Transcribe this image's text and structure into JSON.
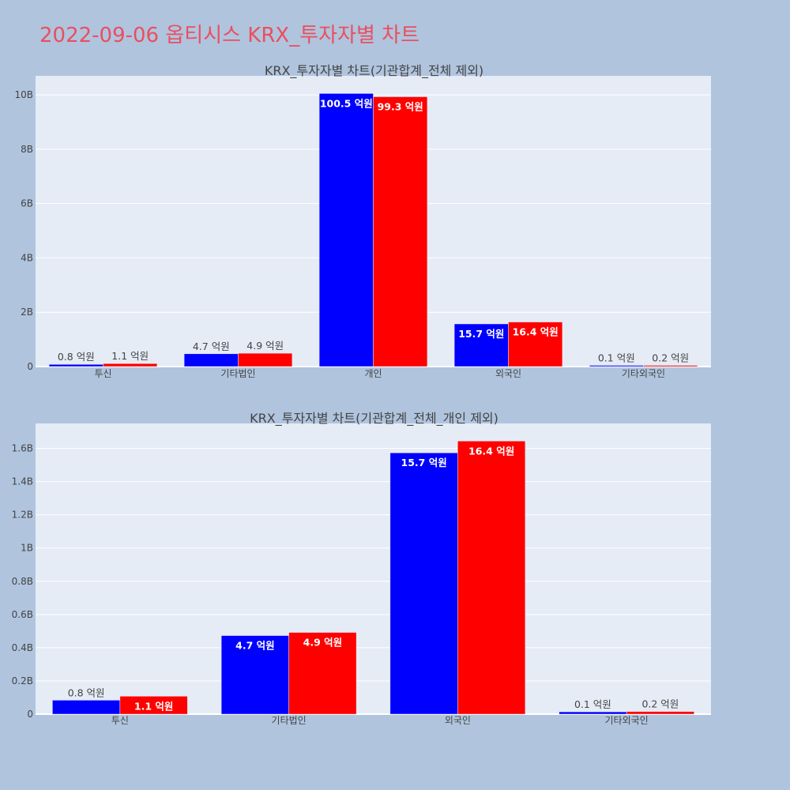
{
  "page": {
    "title": "2022-09-06 옵티시스 KRX_투자자별 차트",
    "background": "#b0c4de",
    "title_color": "#ea4f5f"
  },
  "colors": {
    "series_1": "#0000ff",
    "series_2": "#ff0000",
    "plot_bg": "#e5ecf6",
    "grid": "#ffffff",
    "text": "#444444"
  },
  "chart_data": [
    {
      "type": "bar",
      "title": "KRX_투자자별 차트(기관합계_전체 제외)",
      "categories": [
        "투신",
        "기타법인",
        "개인",
        "외국인",
        "기타외국인"
      ],
      "series": [
        {
          "color": "#0000ff",
          "values": [
            0.08,
            0.47,
            10.05,
            1.57,
            0.01
          ],
          "labels": [
            "0.8 억원",
            "4.7 억원",
            "100.5 억원",
            "15.7 억원",
            "0.1 억원"
          ]
        },
        {
          "color": "#ff0000",
          "values": [
            0.11,
            0.49,
            9.93,
            1.64,
            0.02
          ],
          "labels": [
            "1.1 억원",
            "4.9 억원",
            "99.3 억원",
            "16.4 억원",
            "0.2 억원"
          ]
        }
      ],
      "yticks": [
        0,
        2,
        4,
        6,
        8,
        10
      ],
      "ytick_labels": [
        "0",
        "2B",
        "4B",
        "6B",
        "8B",
        "10B"
      ],
      "ylim": [
        0,
        10.7
      ],
      "unit": "B",
      "grid": true
    },
    {
      "type": "bar",
      "title": "KRX_투자자별 차트(기관합계_전체_개인 제외)",
      "categories": [
        "투신",
        "기타법인",
        "외국인",
        "기타외국인"
      ],
      "series": [
        {
          "color": "#0000ff",
          "values": [
            0.084,
            0.473,
            1.573,
            0.014
          ],
          "labels": [
            "0.8 억원",
            "4.7 억원",
            "15.7 억원",
            "0.1 억원"
          ]
        },
        {
          "color": "#ff0000",
          "values": [
            0.108,
            0.492,
            1.644,
            0.016
          ],
          "labels": [
            "1.1 억원",
            "4.9 억원",
            "16.4 억원",
            "0.2 억원"
          ]
        }
      ],
      "yticks": [
        0,
        0.2,
        0.4,
        0.6,
        0.8,
        1.0,
        1.2,
        1.4,
        1.6
      ],
      "ytick_labels": [
        "0",
        "0.2B",
        "0.4B",
        "0.6B",
        "0.8B",
        "1B",
        "1.2B",
        "1.4B",
        "1.6B"
      ],
      "ylim": [
        0,
        1.75
      ],
      "unit": "B",
      "grid": true
    }
  ]
}
